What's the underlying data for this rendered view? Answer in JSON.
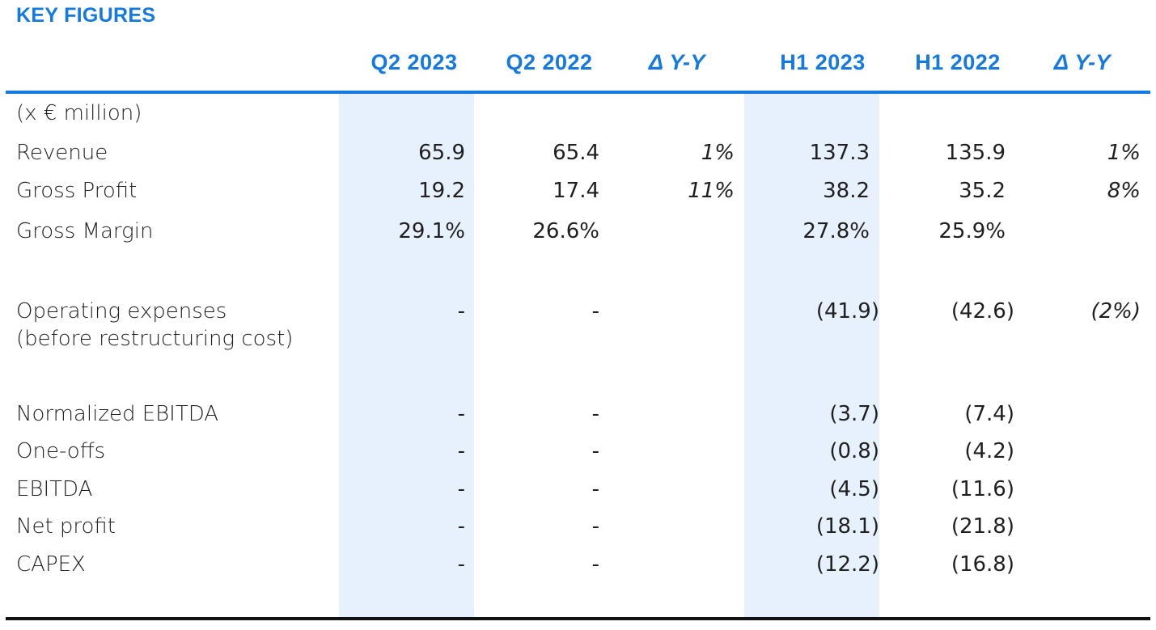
{
  "title": "KEY FIGURES",
  "headers": [
    "Q2 2023",
    "Q2 2022",
    "Δ Y-Y",
    "H1 2023",
    "H1 2022",
    "Δ Y-Y"
  ],
  "unit": "(x € million)",
  "rows": [
    {
      "label": "Revenue",
      "q2_2023": "65.9",
      "q2_2022": "65.4",
      "q_delta": "1%",
      "h1_2023": "137.3",
      "h1_2022": "135.9",
      "h_delta": "1%"
    },
    {
      "label": "Gross Profit",
      "q2_2023": "19.2",
      "q2_2022": "17.4",
      "q_delta": "11%",
      "h1_2023": "38.2",
      "h1_2022": "35.2",
      "h_delta": "8%"
    },
    {
      "label": "Gross Margin",
      "q2_2023": "29.1%",
      "q2_2022": "26.6%",
      "q_delta": "",
      "h1_2023": "27.8%",
      "h1_2022": "25.9%",
      "h_delta": ""
    },
    {
      "label": "Operating expenses",
      "label2": "(before restructuring cost)",
      "q2_2023": "-",
      "q2_2022": "-",
      "q_delta": "",
      "h1_2023": "(41.9)",
      "h1_2022": "(42.6)",
      "h_delta": "(2%)"
    },
    {
      "label": "Normalized EBITDA",
      "q2_2023": "-",
      "q2_2022": "-",
      "q_delta": "",
      "h1_2023": "(3.7)",
      "h1_2022": "(7.4)",
      "h_delta": ""
    },
    {
      "label": "One-offs",
      "q2_2023": "-",
      "q2_2022": "-",
      "q_delta": "",
      "h1_2023": "(0.8)",
      "h1_2022": "(4.2)",
      "h_delta": ""
    },
    {
      "label": "EBITDA",
      "q2_2023": "-",
      "q2_2022": "-",
      "q_delta": "",
      "h1_2023": "(4.5)",
      "h1_2022": "(11.6)",
      "h_delta": ""
    },
    {
      "label": "Net profit",
      "q2_2023": "-",
      "q2_2022": "-",
      "q_delta": "",
      "h1_2023": "(18.1)",
      "h1_2022": "(21.8)",
      "h_delta": ""
    },
    {
      "label": "CAPEX",
      "q2_2023": "-",
      "q2_2022": "-",
      "q_delta": "",
      "h1_2023": "(12.2)",
      "h1_2022": "(16.8)",
      "h_delta": ""
    }
  ],
  "colors": {
    "accent": "#1479e1",
    "shade": "#e6f1fd",
    "rule_bottom": "#111111"
  }
}
